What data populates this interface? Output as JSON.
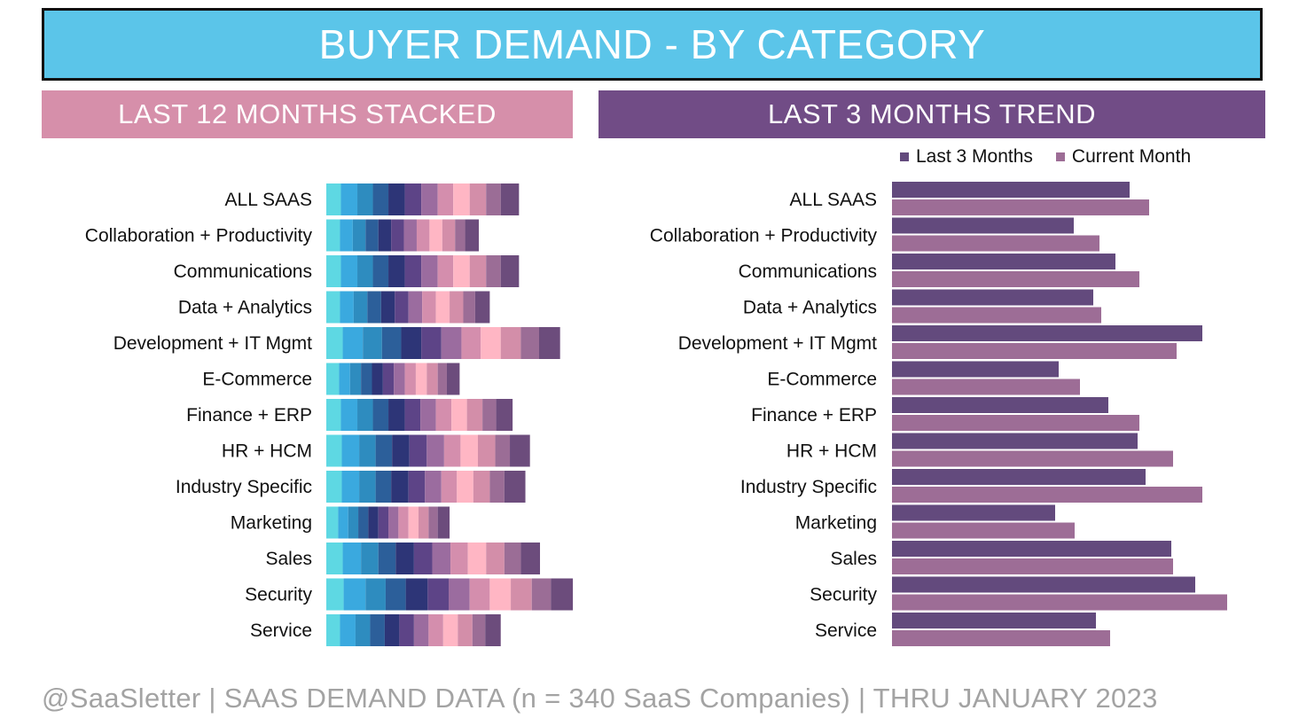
{
  "header": {
    "title": "BUYER DEMAND - BY CATEGORY",
    "left_subtitle": "LAST 12 MONTHS STACKED",
    "right_subtitle": "LAST 3 MONTHS TREND"
  },
  "footer": {
    "text": "@SaaSletter | SAAS DEMAND DATA (n = 340 SaaS Companies) | THRU JANUARY 2023"
  },
  "colors": {
    "title_bg": "#5bc5e9",
    "left_header_bg": "#d68faa",
    "right_header_bg": "#714c86",
    "last3_color": "#634a7d",
    "current_color": "#9d6d96",
    "month_palette": [
      "#5ed8e3",
      "#3aa9df",
      "#2e8cbf",
      "#2c5f9a",
      "#2d3577",
      "#5d4487",
      "#9b6c9f",
      "#d48ead",
      "#ffb6c4",
      "#d38ea9",
      "#9b6d96",
      "#6c4c7c"
    ]
  },
  "chart_data": [
    {
      "type": "bar",
      "stacked": true,
      "orientation": "horizontal",
      "title": "LAST 12 MONTHS STACKED",
      "categories": [
        "ALL SAAS",
        "Collaboration + Productivity",
        "Communications",
        "Data + Analytics",
        "Development + IT Mgmt",
        "E-Commerce",
        "Finance + ERP",
        "HR + HCM",
        "Industry Specific",
        "Marketing",
        "Sales",
        "Security",
        "Service"
      ],
      "series_count": 12,
      "values": [
        [
          16,
          18,
          17,
          17,
          18,
          18,
          18,
          17,
          18,
          18,
          16,
          20
        ],
        [
          15,
          14,
          14,
          14,
          14,
          14,
          14,
          14,
          14,
          14,
          11,
          15
        ],
        [
          16,
          18,
          17,
          17,
          18,
          18,
          18,
          17,
          18,
          18,
          16,
          20
        ],
        [
          15,
          15,
          15,
          15,
          15,
          15,
          15,
          15,
          15,
          15,
          13,
          16
        ],
        [
          18,
          22,
          21,
          21,
          22,
          22,
          22,
          21,
          22,
          22,
          20,
          23
        ],
        [
          14,
          12,
          12,
          12,
          12,
          12,
          12,
          12,
          12,
          12,
          10,
          14
        ],
        [
          16,
          18,
          17,
          17,
          18,
          17,
          17,
          17,
          17,
          17,
          15,
          18
        ],
        [
          17,
          19,
          18,
          18,
          19,
          19,
          19,
          18,
          19,
          19,
          16,
          22
        ],
        [
          17,
          19,
          18,
          17,
          19,
          18,
          18,
          17,
          18,
          18,
          16,
          23
        ],
        [
          13,
          11,
          11,
          11,
          11,
          11,
          11,
          11,
          11,
          11,
          10,
          13
        ],
        [
          18,
          20,
          19,
          19,
          20,
          20,
          20,
          19,
          20,
          20,
          18,
          21
        ],
        [
          19,
          24,
          22,
          22,
          24,
          23,
          23,
          22,
          23,
          23,
          21,
          24
        ],
        [
          15,
          17,
          16,
          16,
          16,
          16,
          16,
          16,
          16,
          16,
          14,
          17
        ]
      ]
    },
    {
      "type": "bar",
      "orientation": "horizontal",
      "title": "LAST 3 MONTHS TREND",
      "categories": [
        "ALL SAAS",
        "Collaboration + Productivity",
        "Communications",
        "Data + Analytics",
        "Development + IT Mgmt",
        "E-Commerce",
        "Finance + ERP",
        "HR + HCM",
        "Industry Specific",
        "Marketing",
        "Sales",
        "Security",
        "Service"
      ],
      "xlim": [
        0,
        380
      ],
      "series": [
        {
          "name": "Last 3 Months",
          "values": [
            268,
            205,
            252,
            227,
            350,
            188,
            244,
            277,
            286,
            184,
            315,
            342,
            230
          ]
        },
        {
          "name": "Current Month",
          "values": [
            290,
            234,
            279,
            236,
            321,
            212,
            279,
            317,
            350,
            206,
            317,
            378,
            246
          ]
        }
      ]
    }
  ]
}
